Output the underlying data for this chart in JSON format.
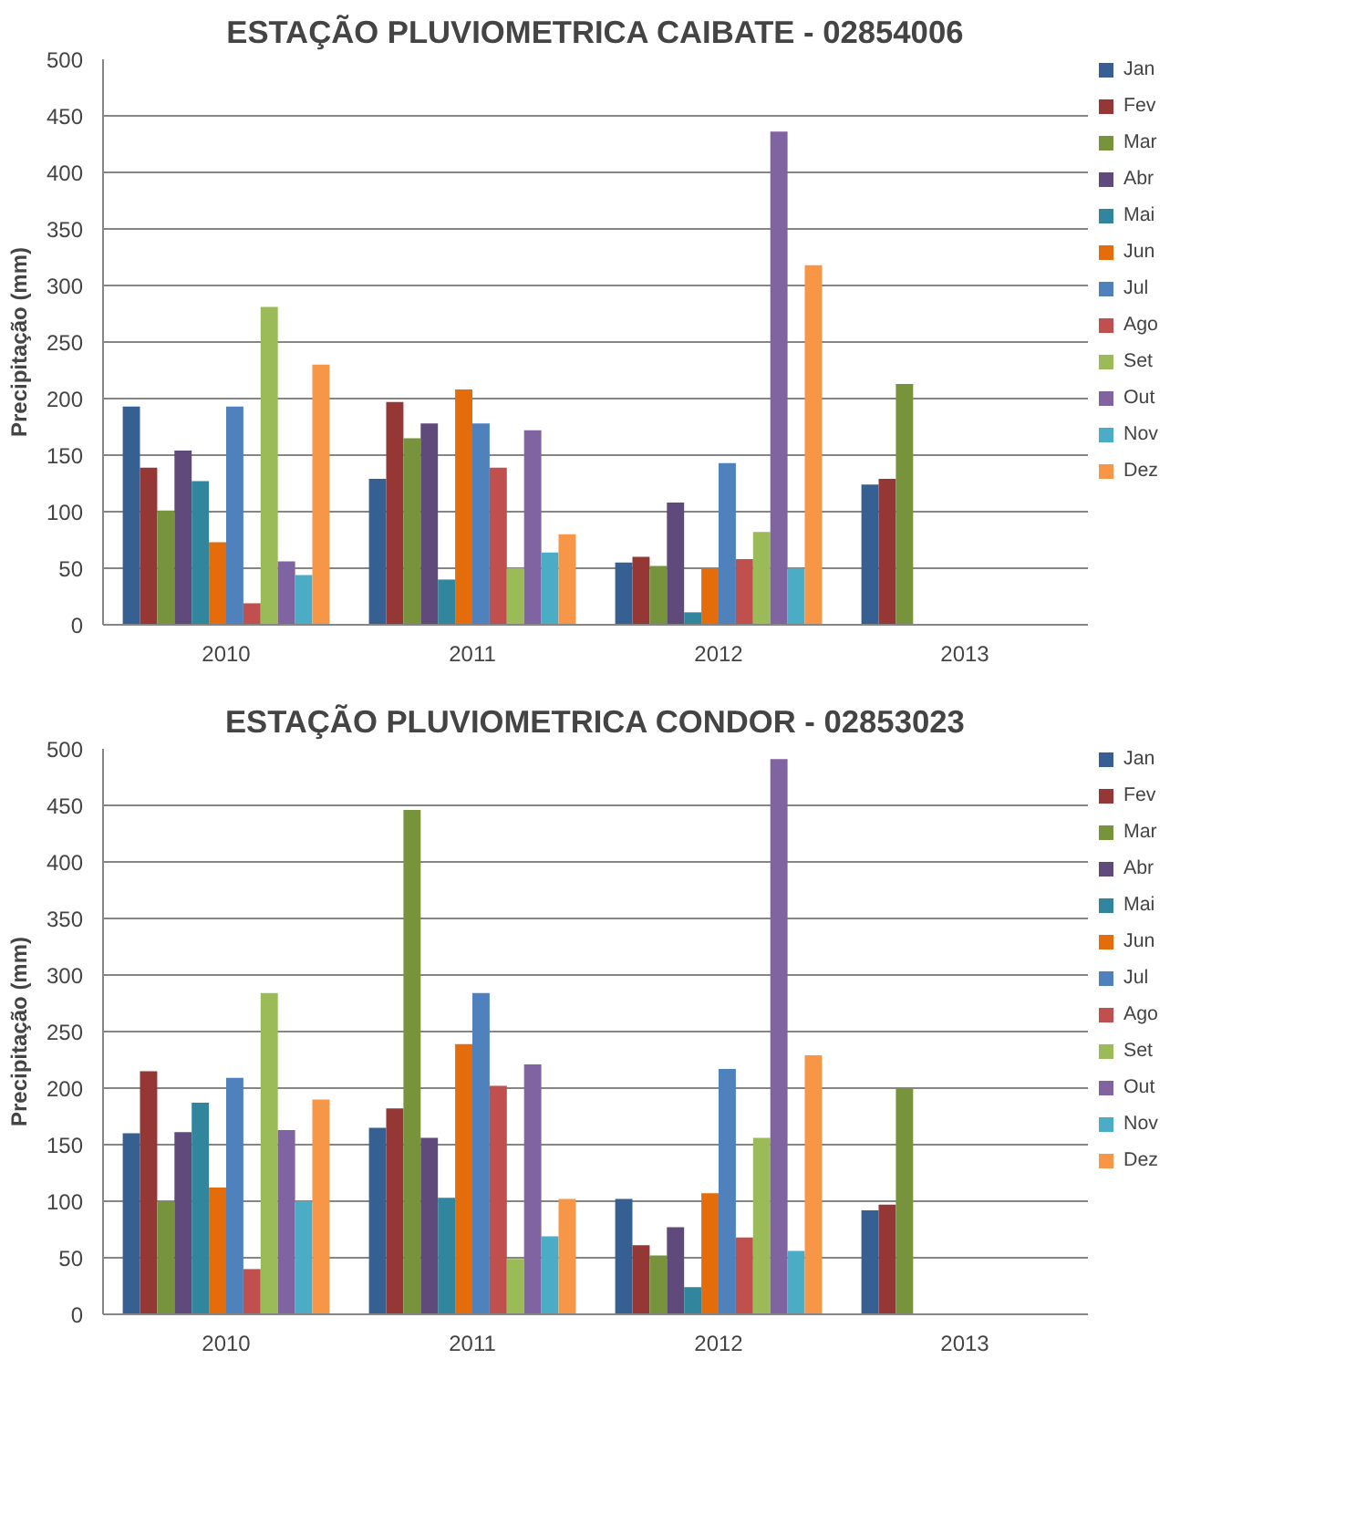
{
  "chart_data": [
    {
      "type": "bar",
      "title": "ESTAÇÃO PLUVIOMETRICA CAIBATE - 02854006",
      "ylabel": "Precipitação (mm)",
      "categories": [
        "2010",
        "2011",
        "2012",
        "2013"
      ],
      "ylim": [
        0,
        500
      ],
      "yticks": [
        0,
        50,
        100,
        150,
        200,
        250,
        300,
        350,
        400,
        450,
        500
      ],
      "grid": "y",
      "legend": "right",
      "series": [
        {
          "name": "Jan",
          "color": "#376092",
          "values": [
            193,
            129,
            55,
            124
          ]
        },
        {
          "name": "Fev",
          "color": "#953735",
          "values": [
            139,
            197,
            60,
            129
          ]
        },
        {
          "name": "Mar",
          "color": "#77933c",
          "values": [
            101,
            165,
            52,
            213
          ]
        },
        {
          "name": "Abr",
          "color": "#604a7b",
          "values": [
            154,
            178,
            108,
            null
          ]
        },
        {
          "name": "Mai",
          "color": "#31859c",
          "values": [
            127,
            40,
            11,
            null
          ]
        },
        {
          "name": "Jun",
          "color": "#e46c0a",
          "values": [
            73,
            208,
            50,
            null
          ]
        },
        {
          "name": "Jul",
          "color": "#4f81bd",
          "values": [
            193,
            178,
            143,
            null
          ]
        },
        {
          "name": "Ago",
          "color": "#c0504d",
          "values": [
            19,
            139,
            58,
            null
          ]
        },
        {
          "name": "Set",
          "color": "#9bbb59",
          "values": [
            281,
            50,
            82,
            null
          ]
        },
        {
          "name": "Out",
          "color": "#8064a2",
          "values": [
            56,
            172,
            436,
            null
          ]
        },
        {
          "name": "Nov",
          "color": "#4bacc6",
          "values": [
            44,
            64,
            50,
            null
          ]
        },
        {
          "name": "Dez",
          "color": "#f79646",
          "values": [
            230,
            80,
            318,
            null
          ]
        }
      ]
    },
    {
      "type": "bar",
      "title": "ESTAÇÃO PLUVIOMETRICA CONDOR - 02853023",
      "ylabel": "Precipitação (mm)",
      "categories": [
        "2010",
        "2011",
        "2012",
        "2013"
      ],
      "ylim": [
        0,
        500
      ],
      "yticks": [
        0,
        50,
        100,
        150,
        200,
        250,
        300,
        350,
        400,
        450,
        500
      ],
      "grid": "y",
      "legend": "right",
      "series": [
        {
          "name": "Jan",
          "color": "#376092",
          "values": [
            160,
            165,
            102,
            92
          ]
        },
        {
          "name": "Fev",
          "color": "#953735",
          "values": [
            215,
            182,
            61,
            97
          ]
        },
        {
          "name": "Mar",
          "color": "#77933c",
          "values": [
            100,
            446,
            52,
            200
          ]
        },
        {
          "name": "Abr",
          "color": "#604a7b",
          "values": [
            161,
            156,
            77,
            null
          ]
        },
        {
          "name": "Mai",
          "color": "#31859c",
          "values": [
            187,
            103,
            24,
            null
          ]
        },
        {
          "name": "Jun",
          "color": "#e46c0a",
          "values": [
            112,
            239,
            107,
            null
          ]
        },
        {
          "name": "Jul",
          "color": "#4f81bd",
          "values": [
            209,
            284,
            217,
            null
          ]
        },
        {
          "name": "Ago",
          "color": "#c0504d",
          "values": [
            40,
            202,
            68,
            null
          ]
        },
        {
          "name": "Set",
          "color": "#9bbb59",
          "values": [
            284,
            49,
            156,
            null
          ]
        },
        {
          "name": "Out",
          "color": "#8064a2",
          "values": [
            163,
            221,
            491,
            null
          ]
        },
        {
          "name": "Nov",
          "color": "#4bacc6",
          "values": [
            100,
            69,
            56,
            null
          ]
        },
        {
          "name": "Dez",
          "color": "#f79646",
          "values": [
            190,
            102,
            229,
            null
          ]
        }
      ]
    }
  ]
}
